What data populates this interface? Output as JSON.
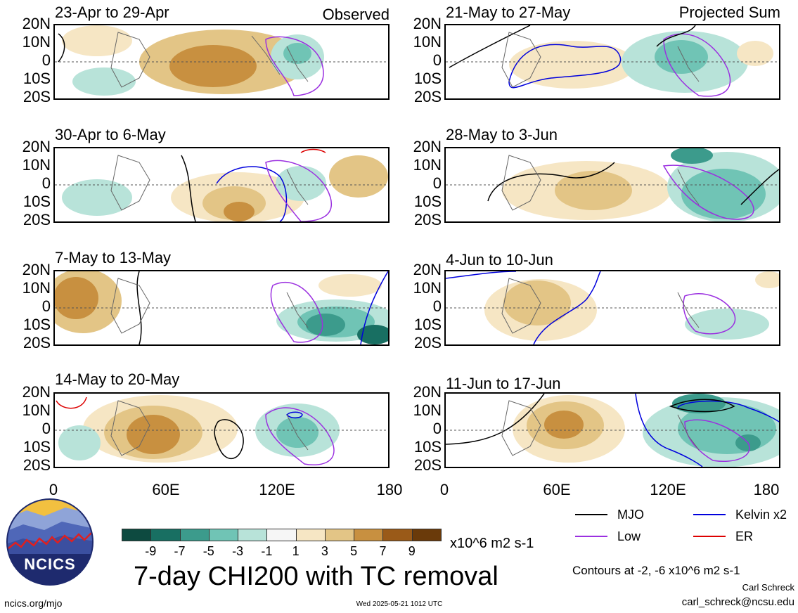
{
  "panels": [
    {
      "title": "23-Apr to 29-Apr",
      "tag": "Observed"
    },
    {
      "title": "30-Apr to 6-May",
      "tag": ""
    },
    {
      "title": "7-May to 13-May",
      "tag": ""
    },
    {
      "title": "14-May to 20-May",
      "tag": ""
    },
    {
      "title": "21-May to 27-May",
      "tag": "Projected Sum"
    },
    {
      "title": "28-May to 3-Jun",
      "tag": ""
    },
    {
      "title": "4-Jun to 10-Jun",
      "tag": ""
    },
    {
      "title": "11-Jun to 17-Jun",
      "tag": ""
    }
  ],
  "lat_labels": [
    "20N",
    "10N",
    "0",
    "10S",
    "20S"
  ],
  "lon_labels": [
    "0",
    "60E",
    "120E",
    "180"
  ],
  "colorbar": {
    "colors": [
      "#0d4a40",
      "#186f62",
      "#3c9b8c",
      "#70c4b5",
      "#b8e3d9",
      "#f6f6f6",
      "#f6e6c4",
      "#e3c586",
      "#c89040",
      "#9a5a18",
      "#6a3a0a"
    ],
    "labels": [
      "-9",
      "-7",
      "-5",
      "-3",
      "-1",
      "1",
      "3",
      "5",
      "7",
      "9"
    ],
    "units": "x10^6 m2 s-1"
  },
  "legend": [
    {
      "label": "MJO",
      "color": "#000000"
    },
    {
      "label": "Kelvin x2",
      "color": "#0000dd"
    },
    {
      "label": "Low",
      "color": "#9b30e0"
    },
    {
      "label": "ER",
      "color": "#dd0000"
    }
  ],
  "contour_note": "Contours at -2, -6 x10^6 m2 s-1",
  "main_title": "7-day CHI200 with TC removal",
  "logo_text": "NCICS",
  "footer_left": "ncics.org/mjo",
  "footer_center": "Wed 2025-05-21 1012 UTC",
  "author": "Carl Schreck",
  "email": "carl_schreck@ncsu.edu"
}
